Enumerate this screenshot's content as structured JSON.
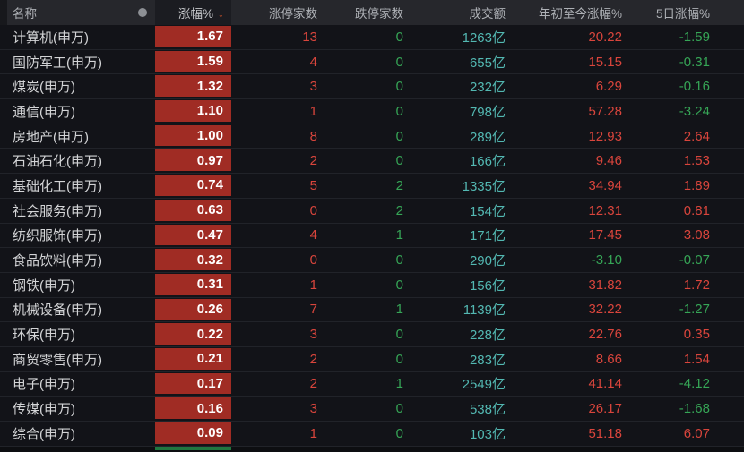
{
  "table": {
    "header": {
      "name": "名称",
      "change": "涨幅%",
      "sort_arrow": "↓",
      "limit_up": "涨停家数",
      "limit_down": "跌停家数",
      "turnover": "成交额",
      "ytd": "年初至今涨幅%",
      "five_day": "5日涨幅%"
    },
    "rows": [
      {
        "name": "计算机(申万)",
        "change": "1.67",
        "limit_up": "13",
        "limit_down": "0",
        "turnover": "1263亿",
        "ytd": "20.22",
        "five_day": "-1.59"
      },
      {
        "name": "国防军工(申万)",
        "change": "1.59",
        "limit_up": "4",
        "limit_down": "0",
        "turnover": "655亿",
        "ytd": "15.15",
        "five_day": "-0.31"
      },
      {
        "name": "煤炭(申万)",
        "change": "1.32",
        "limit_up": "3",
        "limit_down": "0",
        "turnover": "232亿",
        "ytd": "6.29",
        "five_day": "-0.16"
      },
      {
        "name": "通信(申万)",
        "change": "1.10",
        "limit_up": "1",
        "limit_down": "0",
        "turnover": "798亿",
        "ytd": "57.28",
        "five_day": "-3.24"
      },
      {
        "name": "房地产(申万)",
        "change": "1.00",
        "limit_up": "8",
        "limit_down": "0",
        "turnover": "289亿",
        "ytd": "12.93",
        "five_day": "2.64"
      },
      {
        "name": "石油石化(申万)",
        "change": "0.97",
        "limit_up": "2",
        "limit_down": "0",
        "turnover": "166亿",
        "ytd": "9.46",
        "five_day": "1.53"
      },
      {
        "name": "基础化工(申万)",
        "change": "0.74",
        "limit_up": "5",
        "limit_down": "2",
        "turnover": "1335亿",
        "ytd": "34.94",
        "five_day": "1.89"
      },
      {
        "name": "社会服务(申万)",
        "change": "0.63",
        "limit_up": "0",
        "limit_down": "2",
        "turnover": "154亿",
        "ytd": "12.31",
        "five_day": "0.81"
      },
      {
        "name": "纺织服饰(申万)",
        "change": "0.47",
        "limit_up": "4",
        "limit_down": "1",
        "turnover": "171亿",
        "ytd": "17.45",
        "five_day": "3.08"
      },
      {
        "name": "食品饮料(申万)",
        "change": "0.32",
        "limit_up": "0",
        "limit_down": "0",
        "turnover": "290亿",
        "ytd": "-3.10",
        "five_day": "-0.07"
      },
      {
        "name": "钢铁(申万)",
        "change": "0.31",
        "limit_up": "1",
        "limit_down": "0",
        "turnover": "156亿",
        "ytd": "31.82",
        "five_day": "1.72"
      },
      {
        "name": "机械设备(申万)",
        "change": "0.26",
        "limit_up": "7",
        "limit_down": "1",
        "turnover": "1139亿",
        "ytd": "32.22",
        "five_day": "-1.27"
      },
      {
        "name": "环保(申万)",
        "change": "0.22",
        "limit_up": "3",
        "limit_down": "0",
        "turnover": "228亿",
        "ytd": "22.76",
        "five_day": "0.35"
      },
      {
        "name": "商贸零售(申万)",
        "change": "0.21",
        "limit_up": "2",
        "limit_down": "0",
        "turnover": "283亿",
        "ytd": "8.66",
        "five_day": "1.54"
      },
      {
        "name": "电子(申万)",
        "change": "0.17",
        "limit_up": "2",
        "limit_down": "1",
        "turnover": "2549亿",
        "ytd": "41.14",
        "five_day": "-4.12"
      },
      {
        "name": "传媒(申万)",
        "change": "0.16",
        "limit_up": "3",
        "limit_down": "0",
        "turnover": "538亿",
        "ytd": "26.17",
        "five_day": "-1.68"
      },
      {
        "name": "综合(申万)",
        "change": "0.09",
        "limit_up": "1",
        "limit_down": "0",
        "turnover": "103亿",
        "ytd": "51.18",
        "five_day": "6.07"
      }
    ],
    "partial_next_row": {
      "visible": true
    }
  },
  "colors": {
    "page_bg": "#0d0e11",
    "row_bg": "#121318",
    "separator": "#212329",
    "header_bg": "#26272c",
    "header_sorted_bg": "#1b1c21",
    "header_text": "#aeb1b6",
    "name_text": "#d3d4d6",
    "change_text": "#ffffff",
    "up_red": "#d9453c",
    "down_green": "#36a556",
    "turnover_teal": "#53b8b2",
    "heat_red": "#a02c24",
    "heat_green": "#20763f",
    "arrow_orange": "#e0582a",
    "circle_gray": "#8d9095"
  }
}
